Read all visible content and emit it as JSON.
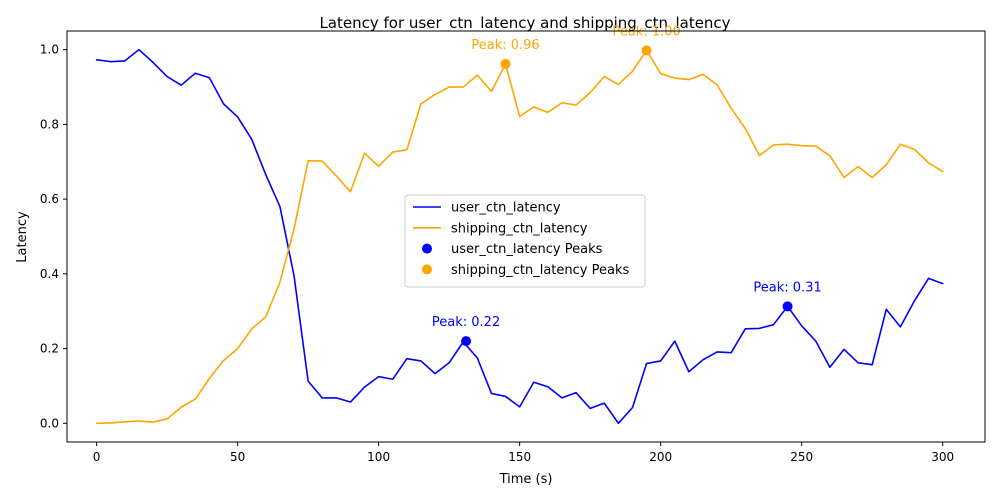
{
  "chart_data": {
    "type": "line",
    "title": "Latency for user_ctn_latency and shipping_ctn_latency",
    "xlabel": "Time (s)",
    "ylabel": "Latency",
    "xlim": [
      -10.5,
      315
    ],
    "ylim": [
      -0.05,
      1.05
    ],
    "xticks": [
      0,
      50,
      100,
      150,
      200,
      250,
      300
    ],
    "yticks": [
      0.0,
      0.2,
      0.4,
      0.6,
      0.8,
      1.0
    ],
    "xtick_labels": [
      "0",
      "50",
      "100",
      "150",
      "200",
      "250",
      "300"
    ],
    "ytick_labels": [
      "0.0",
      "0.2",
      "0.4",
      "0.6",
      "0.8",
      "1.0"
    ],
    "grid": false,
    "legend_position": "center",
    "x": [
      0,
      5,
      10,
      15,
      20,
      25,
      30,
      35,
      40,
      45,
      50,
      55,
      60,
      65,
      70,
      75,
      80,
      85,
      90,
      95,
      100,
      105,
      110,
      115,
      120,
      125,
      130,
      135,
      140,
      145,
      150,
      155,
      160,
      165,
      170,
      175,
      180,
      185,
      190,
      195,
      200,
      205,
      210,
      215,
      220,
      225,
      230,
      235,
      240,
      245,
      250,
      255,
      260,
      265,
      270,
      275,
      280,
      285,
      290,
      295,
      300
    ],
    "series": [
      {
        "name": "user_ctn_latency",
        "color": "#0000ff",
        "values": [
          0.973,
          0.968,
          0.97,
          1.0,
          0.966,
          0.928,
          0.905,
          0.937,
          0.925,
          0.855,
          0.82,
          0.76,
          0.665,
          0.58,
          0.395,
          0.113,
          0.068,
          0.068,
          0.057,
          0.097,
          0.125,
          0.118,
          0.173,
          0.167,
          0.133,
          0.162,
          0.218,
          0.175,
          0.08,
          0.072,
          0.044,
          0.11,
          0.098,
          0.068,
          0.082,
          0.04,
          0.054,
          0.0,
          0.042,
          0.16,
          0.167,
          0.22,
          0.138,
          0.17,
          0.191,
          0.189,
          0.253,
          0.254,
          0.264,
          0.313,
          0.261,
          0.22,
          0.15,
          0.198,
          0.162,
          0.157,
          0.305,
          0.258,
          0.328,
          0.388,
          0.374
        ]
      },
      {
        "name": "shipping_ctn_latency",
        "color": "#ffa500",
        "values": [
          0.0,
          0.001,
          0.004,
          0.006,
          0.003,
          0.012,
          0.043,
          0.065,
          0.12,
          0.168,
          0.2,
          0.253,
          0.285,
          0.378,
          0.52,
          0.703,
          0.702,
          0.662,
          0.62,
          0.723,
          0.688,
          0.726,
          0.732,
          0.855,
          0.88,
          0.9,
          0.9,
          0.932,
          0.888,
          0.962,
          0.821,
          0.847,
          0.832,
          0.858,
          0.852,
          0.885,
          0.928,
          0.907,
          0.942,
          0.998,
          0.936,
          0.924,
          0.92,
          0.934,
          0.906,
          0.843,
          0.789,
          0.717,
          0.745,
          0.747,
          0.743,
          0.742,
          0.716,
          0.658,
          0.687,
          0.658,
          0.692,
          0.747,
          0.733,
          0.697,
          0.674
        ]
      }
    ],
    "peaks": [
      {
        "series": "user_ctn_latency",
        "x": 131,
        "y": 0.22,
        "label": "Peak: 0.22",
        "color": "#0000ff"
      },
      {
        "series": "user_ctn_latency",
        "x": 245,
        "y": 0.313,
        "label": "Peak: 0.31",
        "color": "#0000ff"
      },
      {
        "series": "shipping_ctn_latency",
        "x": 145,
        "y": 0.962,
        "label": "Peak: 0.96",
        "color": "#ffa500"
      },
      {
        "series": "shipping_ctn_latency",
        "x": 195,
        "y": 0.998,
        "label": "Peak: 1.00",
        "color": "#ffa500"
      }
    ],
    "legend": [
      {
        "label": "user_ctn_latency",
        "kind": "line",
        "color": "#0000ff"
      },
      {
        "label": "shipping_ctn_latency",
        "kind": "line",
        "color": "#ffa500"
      },
      {
        "label": "user_ctn_latency Peaks",
        "kind": "marker",
        "color": "#0000ff"
      },
      {
        "label": "shipping_ctn_latency Peaks",
        "kind": "marker",
        "color": "#ffa500"
      }
    ]
  }
}
